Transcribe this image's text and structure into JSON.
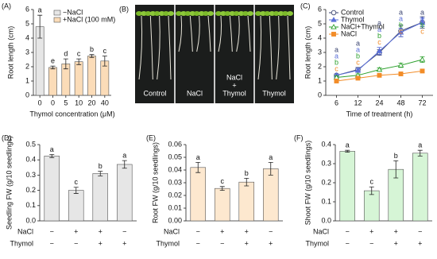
{
  "chart_data": [
    {
      "type": "bar",
      "panel_label": "(A)",
      "ylabel": "Root length (cm)",
      "xlabel": "Thymol concentration (μM)",
      "categories": [
        "0",
        "0",
        "5",
        "10",
        "20",
        "40"
      ],
      "series": [
        {
          "name": "−NaCl",
          "color": "#e6e6e6",
          "values": [
            4.8,
            null,
            null,
            null,
            null,
            null
          ],
          "errors": [
            0.8,
            null,
            null,
            null,
            null,
            null
          ],
          "letters": [
            "a",
            null,
            null,
            null,
            null,
            null
          ]
        },
        {
          "name": "+NaCl (100 mM)",
          "color": "#fbdcb8",
          "values": [
            null,
            1.95,
            2.2,
            2.35,
            2.75,
            2.4
          ],
          "errors": [
            null,
            0.1,
            0.35,
            0.2,
            0.1,
            0.35
          ],
          "letters": [
            null,
            "e",
            "d",
            "c",
            "b",
            "c"
          ]
        }
      ],
      "ylim": [
        0,
        6
      ],
      "yticks": [
        0,
        1,
        2,
        3,
        4,
        5,
        6
      ],
      "legend": "upper right"
    },
    {
      "type": "line",
      "panel_label": "(C)",
      "ylabel": "Root length (cm)",
      "xlabel": "Time of treatment (h)",
      "categories": [
        6,
        12,
        24,
        48,
        72
      ],
      "series": [
        {
          "name": "Control",
          "color": "#3a4470",
          "marker": "circle",
          "filled": false,
          "values": [
            1.4,
            1.8,
            3.0,
            4.5,
            5.1
          ],
          "errors": [
            0.1,
            0.15,
            0.2,
            0.4,
            0.4
          ],
          "letters": [
            "a",
            "a",
            "a",
            "a",
            "a"
          ]
        },
        {
          "name": "Thymol",
          "color": "#5b6fd8",
          "marker": "triangle",
          "filled": true,
          "values": [
            1.4,
            1.75,
            3.1,
            4.4,
            5.1
          ],
          "errors": [
            0.1,
            0.15,
            0.25,
            0.3,
            0.3
          ],
          "letters": [
            "a",
            "a",
            "a",
            "a",
            "a"
          ]
        },
        {
          "name": "NaCl+Thymol",
          "color": "#2ca02c",
          "marker": "triangle",
          "filled": false,
          "values": [
            1.25,
            1.4,
            1.8,
            2.1,
            2.5
          ],
          "errors": [
            0.1,
            0.1,
            0.12,
            0.15,
            0.2
          ],
          "letters": [
            "b",
            "b",
            "b",
            "b",
            "b"
          ]
        },
        {
          "name": "NaCl",
          "color": "#f28c28",
          "marker": "square",
          "filled": true,
          "values": [
            1.0,
            1.2,
            1.4,
            1.5,
            1.7
          ],
          "errors": [
            0.05,
            0.05,
            0.08,
            0.1,
            0.1
          ],
          "letters": [
            "c",
            "c",
            "c",
            "c",
            "c"
          ]
        }
      ],
      "ylim": [
        0,
        6
      ],
      "yticks": [
        0,
        1,
        2,
        3,
        4,
        5,
        6
      ],
      "legend": "upper left"
    },
    {
      "type": "bar",
      "panel_label": "(D)",
      "ylabel": "Seedling FW (g/10 seedlings)",
      "color": "#e6e6e6",
      "values": [
        0.425,
        0.2,
        0.31,
        0.37
      ],
      "errors": [
        0.01,
        0.02,
        0.015,
        0.025
      ],
      "letters": [
        "a",
        "c",
        "b",
        "a"
      ],
      "treatments": [
        {
          "name": "NaCl",
          "signs": [
            "−",
            "+",
            "+",
            "−"
          ]
        },
        {
          "name": "Thymol",
          "signs": [
            "−",
            "−",
            "+",
            "+"
          ]
        }
      ],
      "ylim": [
        0,
        0.5
      ],
      "yticks": [
        {
          "value": 0,
          "label": "0.0"
        },
        0.1,
        0.2,
        0.3,
        0.4,
        0.5
      ]
    },
    {
      "type": "bar",
      "panel_label": "(E)",
      "ylabel": "Root FW (g/10 seedlings)",
      "color": "#fde8cf",
      "values": [
        0.042,
        0.0255,
        0.0305,
        0.041
      ],
      "errors": [
        0.004,
        0.0015,
        0.003,
        0.005
      ],
      "letters": [
        "a",
        "c",
        "b",
        "a"
      ],
      "treatments": [
        {
          "name": "NaCl",
          "signs": [
            "−",
            "+",
            "+",
            "−"
          ]
        },
        {
          "name": "Thymol",
          "signs": [
            "−",
            "−",
            "+",
            "+"
          ]
        }
      ],
      "ylim": [
        0,
        0.06
      ],
      "yticks": [
        {
          "value": 0,
          "label": "0.00"
        },
        0.01,
        0.02,
        0.03,
        0.04,
        0.05,
        0.06
      ]
    },
    {
      "type": "bar",
      "panel_label": "(F)",
      "ylabel": "Shoot FW (g/10 seedlings)",
      "color": "#d6f5d6",
      "values": [
        0.365,
        0.158,
        0.27,
        0.355
      ],
      "errors": [
        0.005,
        0.02,
        0.045,
        0.015
      ],
      "letters": [
        "a",
        "c",
        "b",
        "a"
      ],
      "treatments": [
        {
          "name": "NaCl",
          "signs": [
            "−",
            "+",
            "+",
            "−"
          ]
        },
        {
          "name": "Thymol",
          "signs": [
            "−",
            "−",
            "+",
            "+"
          ]
        }
      ],
      "ylim": [
        0,
        0.4
      ],
      "yticks": [
        {
          "value": 0,
          "label": "0.0"
        },
        0.1,
        0.2,
        0.3,
        0.4
      ]
    }
  ],
  "photo": {
    "panel_label": "(B)",
    "labels": [
      [
        "Control"
      ],
      [
        "NaCl"
      ],
      [
        "NaCl",
        "+",
        "Thymol"
      ],
      [
        "Thymol"
      ]
    ]
  }
}
